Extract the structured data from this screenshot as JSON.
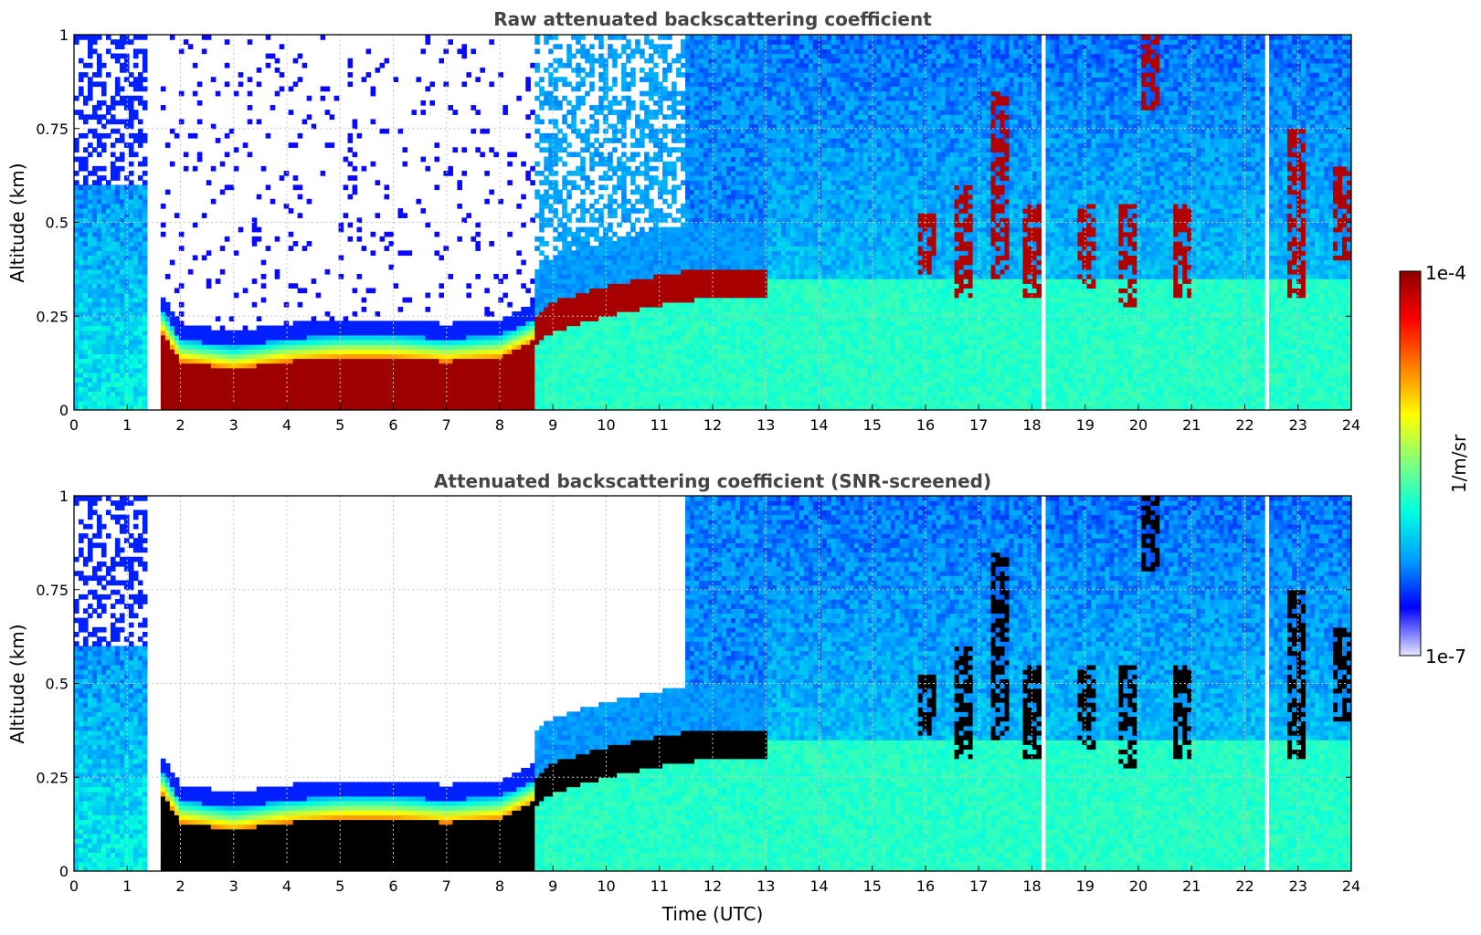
{
  "chart_data": [
    {
      "type": "heatmap",
      "title": "Raw attenuated backscattering coefficient",
      "xlabel": "",
      "ylabel": "Altitude (km)",
      "xlim": [
        0,
        24
      ],
      "ylim": [
        0,
        1
      ],
      "x_ticks": [
        "0",
        "1",
        "2",
        "3",
        "4",
        "5",
        "6",
        "7",
        "8",
        "9",
        "10",
        "11",
        "12",
        "13",
        "14",
        "15",
        "16",
        "17",
        "18",
        "19",
        "20",
        "21",
        "22",
        "23",
        "24"
      ],
      "y_ticks": [
        "0",
        "0.25",
        "0.5",
        "0.75",
        "1"
      ],
      "grid": true,
      "screened": false,
      "layer_top_km": [
        [
          0,
          0.12
        ],
        [
          1.6,
          0.28
        ],
        [
          2,
          0.19
        ],
        [
          3,
          0.17
        ],
        [
          4,
          0.19
        ],
        [
          5,
          0.2
        ],
        [
          6,
          0.2
        ],
        [
          7,
          0.19
        ],
        [
          8,
          0.2
        ],
        [
          8.6,
          0.24
        ],
        [
          9,
          0.29
        ],
        [
          10,
          0.33
        ],
        [
          11,
          0.36
        ],
        [
          12,
          0.38
        ],
        [
          12.8,
          0.38
        ]
      ],
      "cloud_patches": [
        [
          16,
          0.36,
          0.52
        ],
        [
          16.7,
          0.3,
          0.6
        ],
        [
          17.4,
          0.35,
          0.85
        ],
        [
          18,
          0.3,
          0.55
        ],
        [
          19,
          0.32,
          0.55
        ],
        [
          19.8,
          0.28,
          0.55
        ],
        [
          20.2,
          0.8,
          1.0
        ],
        [
          20.8,
          0.3,
          0.55
        ],
        [
          23,
          0.3,
          0.75
        ],
        [
          23.8,
          0.4,
          0.65
        ]
      ],
      "gaps_hours": [
        1.45,
        1.55,
        18.2,
        22.4
      ]
    },
    {
      "type": "heatmap",
      "title": "Attenuated backscattering coefficient (SNR-screened)",
      "xlabel": "Time (UTC)",
      "ylabel": "Altitude (km)",
      "xlim": [
        0,
        24
      ],
      "ylim": [
        0,
        1
      ],
      "x_ticks": [
        "0",
        "1",
        "2",
        "3",
        "4",
        "5",
        "6",
        "7",
        "8",
        "9",
        "10",
        "11",
        "12",
        "13",
        "14",
        "15",
        "16",
        "17",
        "18",
        "19",
        "20",
        "21",
        "22",
        "23",
        "24"
      ],
      "y_ticks": [
        "0",
        "0.25",
        "0.5",
        "0.75",
        "1"
      ],
      "grid": true,
      "screened": true,
      "layer_top_km": [
        [
          0,
          0.12
        ],
        [
          1.6,
          0.28
        ],
        [
          2,
          0.19
        ],
        [
          3,
          0.17
        ],
        [
          4,
          0.19
        ],
        [
          5,
          0.2
        ],
        [
          6,
          0.2
        ],
        [
          7,
          0.19
        ],
        [
          8,
          0.2
        ],
        [
          8.6,
          0.24
        ],
        [
          9,
          0.29
        ],
        [
          10,
          0.33
        ],
        [
          11,
          0.36
        ],
        [
          12,
          0.38
        ],
        [
          12.8,
          0.38
        ]
      ],
      "cloud_patches": [
        [
          16,
          0.36,
          0.52
        ],
        [
          16.7,
          0.3,
          0.6
        ],
        [
          17.4,
          0.35,
          0.85
        ],
        [
          18,
          0.3,
          0.55
        ],
        [
          19,
          0.32,
          0.55
        ],
        [
          19.8,
          0.28,
          0.55
        ],
        [
          20.2,
          0.8,
          1.0
        ],
        [
          20.8,
          0.3,
          0.55
        ],
        [
          23,
          0.3,
          0.75
        ],
        [
          23.8,
          0.4,
          0.65
        ]
      ],
      "gaps_hours": [
        1.45,
        1.55,
        18.2,
        22.4
      ]
    }
  ],
  "colorbar": {
    "label": "1/m/sr",
    "max_label": "1e-4",
    "min_label": "1e-7",
    "scale": "log",
    "range": [
      1e-07,
      0.0001
    ]
  },
  "colors": {
    "title": "#444444",
    "grid": "#c8c8c8",
    "colormap": [
      "#e6e6ff",
      "#0000ff",
      "#00a0ff",
      "#00ffe0",
      "#80ff80",
      "#ffff00",
      "#ff8000",
      "#ff0000",
      "#8b0000"
    ],
    "saturated_screened": "#000000"
  }
}
